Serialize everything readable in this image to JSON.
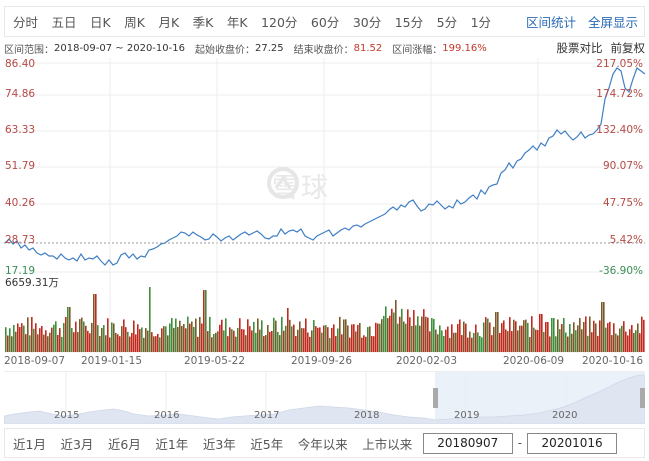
{
  "toolbar": {
    "tabs": [
      "分时",
      "五日",
      "日K",
      "周K",
      "月K",
      "季K",
      "年K",
      "120分",
      "60分",
      "30分",
      "15分",
      "5分",
      "1分"
    ],
    "links": [
      "区间统计",
      "全屏显示"
    ]
  },
  "info": {
    "range_label": "区间范围：",
    "range_value": "2018-09-07 ~ 2020-10-16",
    "start_label": "起始收盘价：",
    "start_value": "27.25",
    "end_label": "结束收盘价：",
    "end_value": "81.52",
    "change_label": "区间涨幅：",
    "change_value": "199.16%",
    "compare": "股票对比",
    "adjust": "前复权"
  },
  "chart": {
    "price_labels": [
      "86.40",
      "74.86",
      "63.33",
      "51.79",
      "40.26",
      "28.73",
      "17.19"
    ],
    "pct_labels": [
      "217.05%",
      "174.72%",
      "132.40%",
      "90.07%",
      "47.75%",
      "5.42%",
      "-36.90%"
    ],
    "volume_max": "6659.31万",
    "x_labels": [
      "2018-09-07",
      "2019-01-15",
      "2019-05-22",
      "2019-09-26",
      "2020-02-03",
      "2020-06-09",
      "2020-10-16"
    ],
    "watermark": "雪球"
  },
  "chart_data": {
    "type": "line",
    "title": "",
    "x_range": [
      "2018-09-07",
      "2020-10-16"
    ],
    "x": [
      "2018-09-07",
      "2018-11",
      "2019-01-15",
      "2019-03",
      "2019-05-22",
      "2019-07",
      "2019-09-26",
      "2019-12",
      "2020-02-03",
      "2020-04",
      "2020-06-09",
      "2020-07",
      "2020-08",
      "2020-09",
      "2020-10-16"
    ],
    "series": [
      {
        "name": "收盘价",
        "values": [
          27.25,
          24.5,
          22.5,
          29.5,
          30.5,
          29.0,
          28.5,
          35.0,
          40.5,
          42.0,
          58.0,
          65.5,
          84.0,
          79.0,
          81.52
        ]
      }
    ],
    "ylim": [
      17.19,
      86.4
    ],
    "y_ticks": [
      17.19,
      28.73,
      40.26,
      51.79,
      63.33,
      74.86,
      86.4
    ],
    "y2_ticks_pct": [
      -36.9,
      5.42,
      47.75,
      90.07,
      132.4,
      174.72,
      217.05
    ],
    "volume_max_label": "6659.31万",
    "grid": true,
    "start_close": 27.25,
    "end_close": 81.52,
    "change_pct": 199.16
  },
  "navigator": {
    "years": [
      "2015",
      "2016",
      "2017",
      "2018",
      "2019",
      "2020"
    ]
  },
  "bottom": {
    "tabs": [
      "近1月",
      "近3月",
      "近6月",
      "近1年",
      "近3年",
      "近5年",
      "今年以来",
      "上市以来"
    ],
    "start_date": "20180907",
    "end_date": "20201016",
    "separator": "-"
  }
}
